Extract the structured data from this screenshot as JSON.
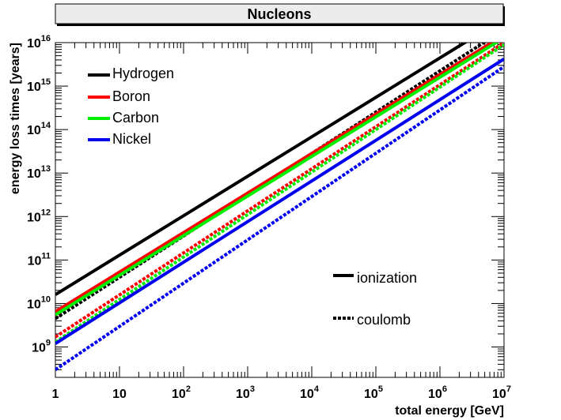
{
  "chart_data": {
    "type": "line",
    "title": "Nucleons",
    "xlabel": "total energy [GeV]",
    "ylabel": "energy loss times [years]",
    "xscale": "log",
    "yscale": "log",
    "xlim": [
      1,
      10000000
    ],
    "ylim": [
      200000000,
      10000000000000000
    ],
    "x_ticks": [
      {
        "base": "1",
        "exp": ""
      },
      {
        "base": "10",
        "exp": ""
      },
      {
        "base": "10",
        "exp": "2"
      },
      {
        "base": "10",
        "exp": "3"
      },
      {
        "base": "10",
        "exp": "4"
      },
      {
        "base": "10",
        "exp": "5"
      },
      {
        "base": "10",
        "exp": "6"
      },
      {
        "base": "10",
        "exp": "7"
      }
    ],
    "y_ticks": [
      {
        "base": "10",
        "exp": "9"
      },
      {
        "base": "10",
        "exp": "10"
      },
      {
        "base": "10",
        "exp": "11"
      },
      {
        "base": "10",
        "exp": "12"
      },
      {
        "base": "10",
        "exp": "13"
      },
      {
        "base": "10",
        "exp": "14"
      },
      {
        "base": "10",
        "exp": "15"
      },
      {
        "base": "10",
        "exp": "16"
      }
    ],
    "legend_placement": "top-left",
    "style_legend_placement": "bottom-right",
    "style_legend": [
      {
        "label": "ionization",
        "style": "solid"
      },
      {
        "label": "coulomb",
        "style": "dotted"
      }
    ],
    "series": [
      {
        "name": "Hydrogen",
        "color": "#000000",
        "style": "solid",
        "x": [
          1,
          10000000
        ],
        "y": [
          16000000000,
          36000000000000000
        ]
      },
      {
        "name": "Hydrogen",
        "color": "#000000",
        "style": "dotted",
        "x": [
          1,
          10000000
        ],
        "y": [
          4500000000,
          20000000000000000
        ]
      },
      {
        "name": "Boron",
        "color": "#ff0000",
        "style": "solid",
        "x": [
          1,
          10000000
        ],
        "y": [
          6500000000,
          15000000000000000
        ]
      },
      {
        "name": "Boron",
        "color": "#ff0000",
        "style": "dotted",
        "x": [
          1,
          10000000
        ],
        "y": [
          1700000000,
          10000000000000000
        ]
      },
      {
        "name": "Carbon",
        "color": "#00ee00",
        "style": "solid",
        "x": [
          1,
          10000000
        ],
        "y": [
          5500000000,
          13000000000000000
        ]
      },
      {
        "name": "Carbon",
        "color": "#00ee00",
        "style": "dotted",
        "x": [
          1,
          10000000
        ],
        "y": [
          1300000000,
          9000000000000000
        ]
      },
      {
        "name": "Nickel",
        "color": "#0000ee",
        "style": "solid",
        "x": [
          1,
          10000000
        ],
        "y": [
          1200000000,
          4200000000000000
        ]
      },
      {
        "name": "Nickel",
        "color": "#0000ee",
        "style": "dotted",
        "x": [
          1,
          10000000
        ],
        "y": [
          300000000,
          2800000000000000
        ]
      }
    ],
    "legend": [
      {
        "label": "Hydrogen",
        "color": "#000000"
      },
      {
        "label": "Boron",
        "color": "#ff0000"
      },
      {
        "label": "Carbon",
        "color": "#00ee00"
      },
      {
        "label": "Nickel",
        "color": "#0000ee"
      }
    ]
  }
}
